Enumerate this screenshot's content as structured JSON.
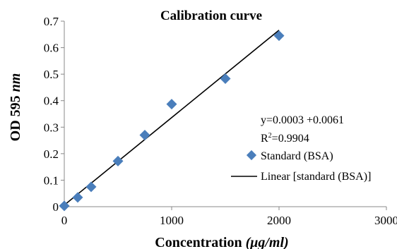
{
  "chart_data": {
    "type": "scatter",
    "title": "Calibration curve",
    "xlabel_main": "Concentration ",
    "xlabel_unit": "(μg/ml)",
    "ylabel_main": "OD 595 ",
    "ylabel_unit": "nm",
    "xlim": [
      0,
      3000
    ],
    "ylim": [
      0,
      0.7
    ],
    "xticks": [
      0,
      1000,
      2000,
      3000
    ],
    "xtick_labels": [
      "0",
      "1000",
      "2000",
      "3000"
    ],
    "yticks": [
      0,
      0.1,
      0.2,
      0.3,
      0.4,
      0.5,
      0.6,
      0.7
    ],
    "ytick_labels": [
      "0",
      "0.1",
      "0.2",
      "0.3",
      "0.4",
      "0.5",
      "0.6",
      "0.7"
    ],
    "grid": false,
    "series": [
      {
        "name": "Standard (BSA)",
        "marker": "diamond",
        "color": "#4a7ebb",
        "x": [
          0,
          125,
          250,
          500,
          750,
          1000,
          1500,
          2000
        ],
        "y": [
          0.003,
          0.035,
          0.075,
          0.172,
          0.27,
          0.387,
          0.483,
          0.645
        ]
      }
    ],
    "trendline": {
      "name": "Linear [standard (BSA)]",
      "type": "linear",
      "color": "#000000",
      "x": [
        0,
        2000
      ],
      "y": [
        0.0061,
        0.6661
      ]
    },
    "annotations": {
      "equation": "y=0.0003  +0.0061",
      "r2_prefix": "R",
      "r2_sup": "2",
      "r2_value": "=0.9904"
    },
    "legend_position": "right"
  }
}
